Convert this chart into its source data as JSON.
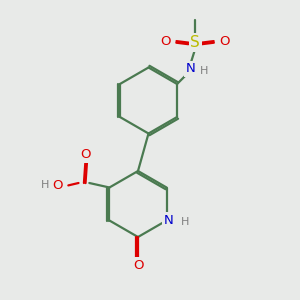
{
  "bg_color": "#e8eae8",
  "bond_color": "#4a7a50",
  "bond_width": 1.6,
  "dbo": 0.12,
  "atom_colors": {
    "C": "#4a7a50",
    "O": "#dd0000",
    "N": "#0000cc",
    "S": "#bbbb00",
    "H": "#808080"
  },
  "font_size": 9.5,
  "figsize": [
    3.0,
    3.0
  ],
  "dpi": 100,
  "xlim": [
    0,
    10
  ],
  "ylim": [
    0,
    10
  ]
}
